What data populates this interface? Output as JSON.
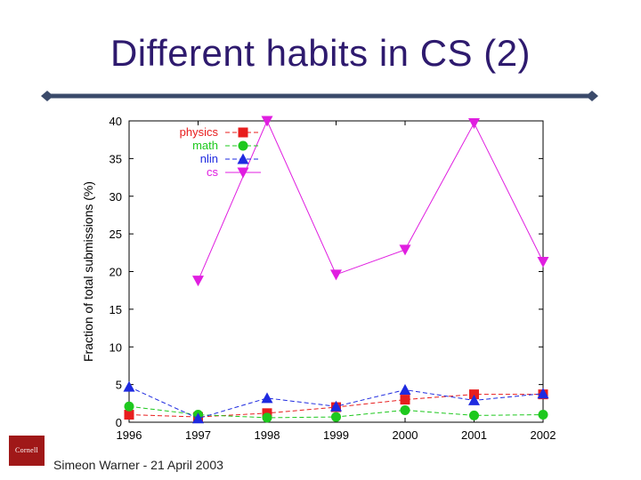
{
  "slide": {
    "title": "Different habits in CS (2)",
    "footer": "Simeon Warner - 21 April 2003",
    "logo_text": "Cornell",
    "title_color": "#2e1a6e",
    "rule_color": "#3a4a6a"
  },
  "chart_data": {
    "type": "line",
    "title": "",
    "xlabel": "",
    "ylabel": "Fraction of total submissions (%)",
    "categories": [
      "1996",
      "1997",
      "1998",
      "1999",
      "2000",
      "2001",
      "2002"
    ],
    "ylim": [
      0,
      40
    ],
    "yticks": [
      0,
      5,
      10,
      15,
      20,
      25,
      30,
      35,
      40
    ],
    "grid": false,
    "legend_position": "top-left",
    "series": [
      {
        "name": "physics",
        "color": "#e81e1e",
        "marker": "square",
        "values": [
          1.0,
          0.7,
          1.2,
          2.0,
          3.0,
          3.7,
          3.7
        ]
      },
      {
        "name": "math",
        "color": "#1ec81e",
        "marker": "circle",
        "values": [
          2.1,
          1.0,
          0.6,
          0.7,
          1.6,
          0.9,
          1.0
        ]
      },
      {
        "name": "nlin",
        "color": "#1e2ae0",
        "marker": "triangle-up",
        "values": [
          4.7,
          0.5,
          3.2,
          2.1,
          4.3,
          2.9,
          3.8
        ]
      },
      {
        "name": "cs",
        "color": "#e01ee0",
        "marker": "triangle-down",
        "values": [
          null,
          18.8,
          40.0,
          19.6,
          22.9,
          39.7,
          21.3
        ]
      }
    ]
  }
}
